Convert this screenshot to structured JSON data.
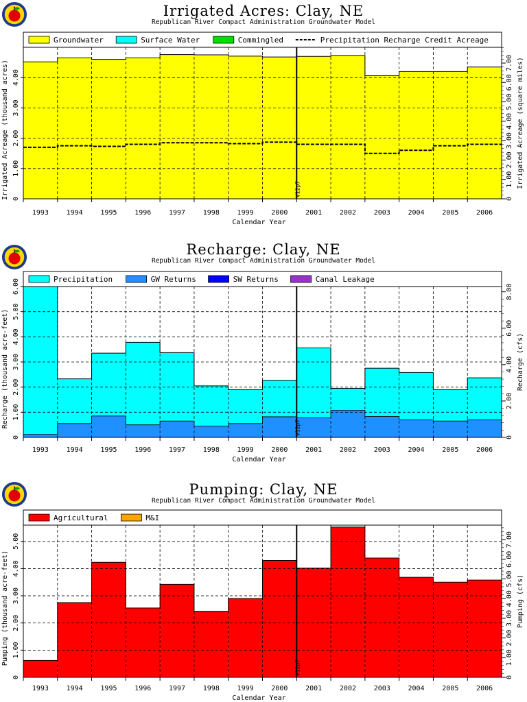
{
  "colors": {
    "groundwater": "#ffff00",
    "surface_water": "#00ffff",
    "commingled": "#00e000",
    "precipitation": "#00ffff",
    "gw_returns": "#1e90ff",
    "sw_returns": "#0000ff",
    "canal_leakage": "#9932cc",
    "agricultural": "#ff0000",
    "mi": "#ffa500"
  },
  "logo_icon": "apple-logo-icon",
  "chart_data": [
    {
      "type": "area",
      "title": "Irrigated  Acres:  Clay,  NE",
      "subtitle": "Republican River Compact Administration Groundwater Model",
      "xlabel": "Calendar Year",
      "ylabel": "Irrigated Acreage (thousand acres)",
      "ylabel_right": "Irrigated Acreage (square miles)",
      "categories": [
        "1993",
        "1994",
        "1995",
        "1996",
        "1997",
        "1998",
        "1999",
        "2000",
        "2001",
        "2002",
        "2003",
        "2004",
        "2005",
        "2006"
      ],
      "ylim": [
        0,
        5.0
      ],
      "yticks": [
        "1.00",
        "2.00",
        "3.00",
        "4.00"
      ],
      "yticks_right": [
        "0",
        "1.00",
        "2.00",
        "3.00",
        "4.00",
        "5.00",
        "6.00",
        "7.00"
      ],
      "right_factor": 1.5625,
      "marker_label": "V12p7",
      "marker_after_index": 7,
      "legend": [
        "Groundwater",
        "Surface Water",
        "Commingled",
        "Precipitation Recharge Credit Acreage"
      ],
      "series": [
        {
          "name": "Groundwater",
          "color_key": "groundwater",
          "values": [
            4.52,
            4.65,
            4.6,
            4.65,
            4.76,
            4.75,
            4.71,
            4.68,
            4.7,
            4.73,
            4.06,
            4.2,
            4.2,
            4.35
          ]
        },
        {
          "name": "Precipitation Recharge Credit Acreage",
          "style": "dashed",
          "values": [
            1.7,
            1.75,
            1.73,
            1.8,
            1.85,
            1.85,
            1.82,
            1.87,
            1.8,
            1.8,
            1.5,
            1.6,
            1.75,
            1.8
          ]
        }
      ]
    },
    {
      "type": "area",
      "title": "Recharge:  Clay,  NE",
      "subtitle": "Republican River Compact Administration Groundwater Model",
      "xlabel": "Calendar Year",
      "ylabel": "Recharge (thousand acre-feet)",
      "ylabel_right": "Recharge (cfs)",
      "categories": [
        "1993",
        "1994",
        "1995",
        "1996",
        "1997",
        "1998",
        "1999",
        "2000",
        "2001",
        "2002",
        "2003",
        "2004",
        "2005",
        "2006"
      ],
      "ylim": [
        0,
        6.0
      ],
      "yticks": [
        "1.00",
        "2.00",
        "3.00",
        "4.00",
        "5.00",
        "6.00"
      ],
      "yticks_right": [
        "0",
        "2.00",
        "4.00",
        "6.00",
        "8.00"
      ],
      "right_factor": 1.3812,
      "marker_label": "V12p7",
      "marker_after_index": 7,
      "legend": [
        "Precipitation",
        "GW Returns",
        "SW Returns",
        "Canal Leakage"
      ],
      "series": [
        {
          "name": "GW Returns",
          "color_key": "gw_returns",
          "values": [
            0.12,
            0.55,
            0.85,
            0.5,
            0.65,
            0.45,
            0.55,
            0.82,
            0.78,
            1.08,
            0.83,
            0.7,
            0.65,
            0.7
          ]
        },
        {
          "name": "Precipitation",
          "color_key": "precipitation",
          "values": [
            5.88,
            1.78,
            2.5,
            3.28,
            2.72,
            1.6,
            1.35,
            1.45,
            2.78,
            0.87,
            1.92,
            1.88,
            1.25,
            1.67
          ]
        }
      ]
    },
    {
      "type": "area",
      "title": "Pumping:  Clay,  NE",
      "subtitle": "Republican River Compact Administration Groundwater Model",
      "xlabel": "Calendar Year",
      "ylabel": "Pumping (thousand acre-feet)",
      "ylabel_right": "Pumping (cfs)",
      "categories": [
        "1993",
        "1994",
        "1995",
        "1996",
        "1997",
        "1998",
        "1999",
        "2000",
        "2001",
        "2002",
        "2003",
        "2004",
        "2005",
        "2006"
      ],
      "ylim": [
        0,
        5.6
      ],
      "yticks": [
        "1.00",
        "2.00",
        "3.00",
        "4.00",
        "5.00"
      ],
      "yticks_right": [
        "0",
        "1.00",
        "2.00",
        "3.00",
        "4.00",
        "5.00",
        "6.00",
        "7.00"
      ],
      "right_factor": 1.3812,
      "marker_label": "V12p7",
      "marker_after_index": 7,
      "legend": [
        "Agricultural",
        "M&I"
      ],
      "series": [
        {
          "name": "Agricultural",
          "color_key": "agricultural",
          "values": [
            0.62,
            2.75,
            4.23,
            2.55,
            3.42,
            2.43,
            2.9,
            4.3,
            4.02,
            5.53,
            4.39,
            3.68,
            3.5,
            3.58
          ]
        }
      ]
    }
  ]
}
